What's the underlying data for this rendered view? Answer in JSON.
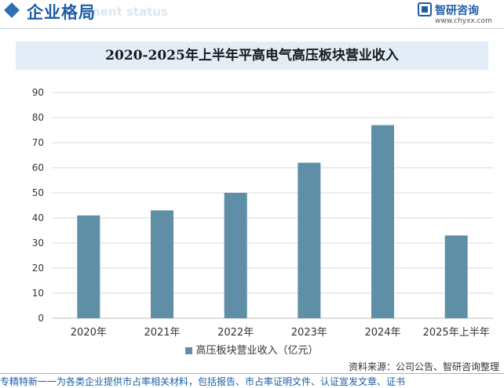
{
  "header": {
    "section_title": "企业格局",
    "section_subtitle": "ment status",
    "logo_name": "智研咨询",
    "logo_url": "www.chyxx.com"
  },
  "colors": {
    "bar": "#5e8fa7",
    "accent": "#1d5da6",
    "title_band": "#e2edf7"
  },
  "chart_data": {
    "type": "bar",
    "title": "2020-2025年上半年平高电气高压板块营业收入",
    "categories": [
      "2020年",
      "2021年",
      "2022年",
      "2023年",
      "2024年",
      "2025年上半年"
    ],
    "series": [
      {
        "name": "高压板块营业收入（亿元）",
        "values": [
          41,
          43,
          50,
          62,
          77,
          33
        ]
      }
    ],
    "ylim": [
      0,
      90
    ],
    "yticks": [
      0,
      10,
      20,
      30,
      40,
      50,
      60,
      70,
      80,
      90
    ],
    "grid": true,
    "legend_position": "bottom"
  },
  "source": "资料来源：公司公告、智研咨询整理",
  "footer": "专精特新一一为各类企业提供市占率相关材料，包括报告、市占率证明文件、认证宣发文章、证书"
}
